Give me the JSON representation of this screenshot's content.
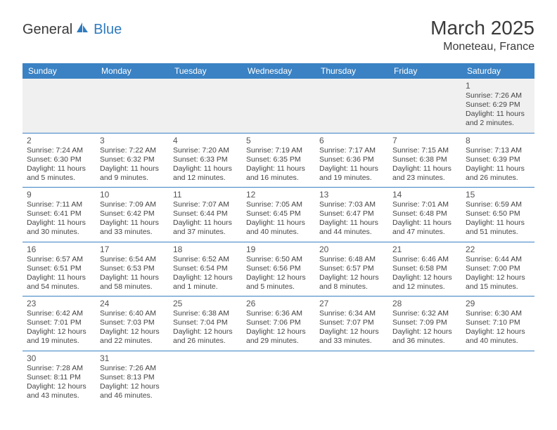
{
  "logo": {
    "text1": "General",
    "text2": "Blue"
  },
  "title": "March 2025",
  "location": "Moneteau, France",
  "daysOfWeek": [
    "Sunday",
    "Monday",
    "Tuesday",
    "Wednesday",
    "Thursday",
    "Friday",
    "Saturday"
  ],
  "colors": {
    "header_bg": "#3a82c4",
    "header_text": "#ffffff",
    "border": "#3a82c4",
    "logo_blue": "#2f7bbf",
    "text": "#3a3a3a"
  },
  "weeks": [
    [
      null,
      null,
      null,
      null,
      null,
      null,
      {
        "n": "1",
        "sr": "7:26 AM",
        "ss": "6:29 PM",
        "dl": "11 hours and 2 minutes."
      }
    ],
    [
      {
        "n": "2",
        "sr": "7:24 AM",
        "ss": "6:30 PM",
        "dl": "11 hours and 5 minutes."
      },
      {
        "n": "3",
        "sr": "7:22 AM",
        "ss": "6:32 PM",
        "dl": "11 hours and 9 minutes."
      },
      {
        "n": "4",
        "sr": "7:20 AM",
        "ss": "6:33 PM",
        "dl": "11 hours and 12 minutes."
      },
      {
        "n": "5",
        "sr": "7:19 AM",
        "ss": "6:35 PM",
        "dl": "11 hours and 16 minutes."
      },
      {
        "n": "6",
        "sr": "7:17 AM",
        "ss": "6:36 PM",
        "dl": "11 hours and 19 minutes."
      },
      {
        "n": "7",
        "sr": "7:15 AM",
        "ss": "6:38 PM",
        "dl": "11 hours and 23 minutes."
      },
      {
        "n": "8",
        "sr": "7:13 AM",
        "ss": "6:39 PM",
        "dl": "11 hours and 26 minutes."
      }
    ],
    [
      {
        "n": "9",
        "sr": "7:11 AM",
        "ss": "6:41 PM",
        "dl": "11 hours and 30 minutes."
      },
      {
        "n": "10",
        "sr": "7:09 AM",
        "ss": "6:42 PM",
        "dl": "11 hours and 33 minutes."
      },
      {
        "n": "11",
        "sr": "7:07 AM",
        "ss": "6:44 PM",
        "dl": "11 hours and 37 minutes."
      },
      {
        "n": "12",
        "sr": "7:05 AM",
        "ss": "6:45 PM",
        "dl": "11 hours and 40 minutes."
      },
      {
        "n": "13",
        "sr": "7:03 AM",
        "ss": "6:47 PM",
        "dl": "11 hours and 44 minutes."
      },
      {
        "n": "14",
        "sr": "7:01 AM",
        "ss": "6:48 PM",
        "dl": "11 hours and 47 minutes."
      },
      {
        "n": "15",
        "sr": "6:59 AM",
        "ss": "6:50 PM",
        "dl": "11 hours and 51 minutes."
      }
    ],
    [
      {
        "n": "16",
        "sr": "6:57 AM",
        "ss": "6:51 PM",
        "dl": "11 hours and 54 minutes."
      },
      {
        "n": "17",
        "sr": "6:54 AM",
        "ss": "6:53 PM",
        "dl": "11 hours and 58 minutes."
      },
      {
        "n": "18",
        "sr": "6:52 AM",
        "ss": "6:54 PM",
        "dl": "12 hours and 1 minute."
      },
      {
        "n": "19",
        "sr": "6:50 AM",
        "ss": "6:56 PM",
        "dl": "12 hours and 5 minutes."
      },
      {
        "n": "20",
        "sr": "6:48 AM",
        "ss": "6:57 PM",
        "dl": "12 hours and 8 minutes."
      },
      {
        "n": "21",
        "sr": "6:46 AM",
        "ss": "6:58 PM",
        "dl": "12 hours and 12 minutes."
      },
      {
        "n": "22",
        "sr": "6:44 AM",
        "ss": "7:00 PM",
        "dl": "12 hours and 15 minutes."
      }
    ],
    [
      {
        "n": "23",
        "sr": "6:42 AM",
        "ss": "7:01 PM",
        "dl": "12 hours and 19 minutes."
      },
      {
        "n": "24",
        "sr": "6:40 AM",
        "ss": "7:03 PM",
        "dl": "12 hours and 22 minutes."
      },
      {
        "n": "25",
        "sr": "6:38 AM",
        "ss": "7:04 PM",
        "dl": "12 hours and 26 minutes."
      },
      {
        "n": "26",
        "sr": "6:36 AM",
        "ss": "7:06 PM",
        "dl": "12 hours and 29 minutes."
      },
      {
        "n": "27",
        "sr": "6:34 AM",
        "ss": "7:07 PM",
        "dl": "12 hours and 33 minutes."
      },
      {
        "n": "28",
        "sr": "6:32 AM",
        "ss": "7:09 PM",
        "dl": "12 hours and 36 minutes."
      },
      {
        "n": "29",
        "sr": "6:30 AM",
        "ss": "7:10 PM",
        "dl": "12 hours and 40 minutes."
      }
    ],
    [
      {
        "n": "30",
        "sr": "7:28 AM",
        "ss": "8:11 PM",
        "dl": "12 hours and 43 minutes."
      },
      {
        "n": "31",
        "sr": "7:26 AM",
        "ss": "8:13 PM",
        "dl": "12 hours and 46 minutes."
      },
      null,
      null,
      null,
      null,
      null
    ]
  ],
  "labels": {
    "sunrise": "Sunrise:",
    "sunset": "Sunset:",
    "daylight": "Daylight:"
  }
}
